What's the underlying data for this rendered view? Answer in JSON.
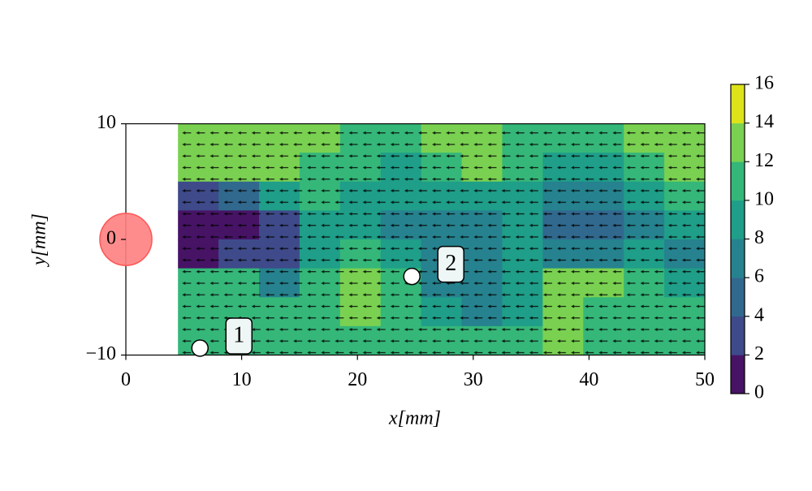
{
  "chart_data": {
    "type": "contour",
    "xlabel": "x[mm]",
    "ylabel": "y[mm]",
    "xlim": [
      0,
      50
    ],
    "ylim": [
      -10,
      10
    ],
    "xticks": [
      0,
      10,
      20,
      30,
      40,
      50
    ],
    "yticks": [
      {
        "value": -10,
        "label": "−10"
      },
      0,
      10
    ],
    "field": {
      "x_edges": [
        4.5,
        8,
        11.5,
        15,
        18.5,
        22,
        25.5,
        29,
        32.5,
        36,
        39.5,
        43,
        46.5,
        50
      ],
      "y_edges": [
        10,
        7.5,
        5,
        2.5,
        0,
        -2.5,
        -5,
        -7.5,
        -10
      ],
      "values": [
        [
          13,
          13,
          13,
          12,
          11,
          11,
          13,
          13,
          11,
          11,
          11,
          12,
          13
        ],
        [
          12,
          13,
          12,
          11,
          10,
          9,
          11,
          12,
          10,
          9,
          9,
          10,
          12
        ],
        [
          3,
          5,
          9,
          11,
          9,
          8,
          9,
          9,
          8,
          7,
          7,
          8,
          10
        ],
        [
          1,
          1,
          3,
          9,
          9,
          7,
          7,
          7,
          9,
          5,
          5,
          7,
          9
        ],
        [
          1,
          3,
          3,
          9,
          11,
          9,
          7,
          7,
          9,
          7,
          7,
          9,
          7
        ],
        [
          11,
          11,
          7,
          11,
          13,
          11,
          7,
          7,
          9,
          13,
          13,
          11,
          9
        ],
        [
          11,
          11,
          11,
          11,
          12,
          11,
          9,
          7,
          9,
          12,
          11,
          11,
          11
        ],
        [
          11,
          11,
          11,
          11,
          11,
          11,
          11,
          11,
          11,
          12,
          11,
          11,
          11
        ]
      ]
    },
    "levels": [
      0,
      2,
      4,
      6,
      8,
      10,
      12,
      14,
      16
    ],
    "level_colors": [
      "#471365",
      "#3e4a89",
      "#31688e",
      "#26828e",
      "#1f9e89",
      "#35b779",
      "#7ad151",
      "#dde318"
    ],
    "cylinder": {
      "center": [
        0,
        0
      ],
      "radius": 2.25,
      "color": "#ff7f7f"
    },
    "points": [
      {
        "label": "1",
        "x": 6.4,
        "y": -9.4
      },
      {
        "label": "2",
        "x": 24.7,
        "y": -3.2
      }
    ]
  }
}
